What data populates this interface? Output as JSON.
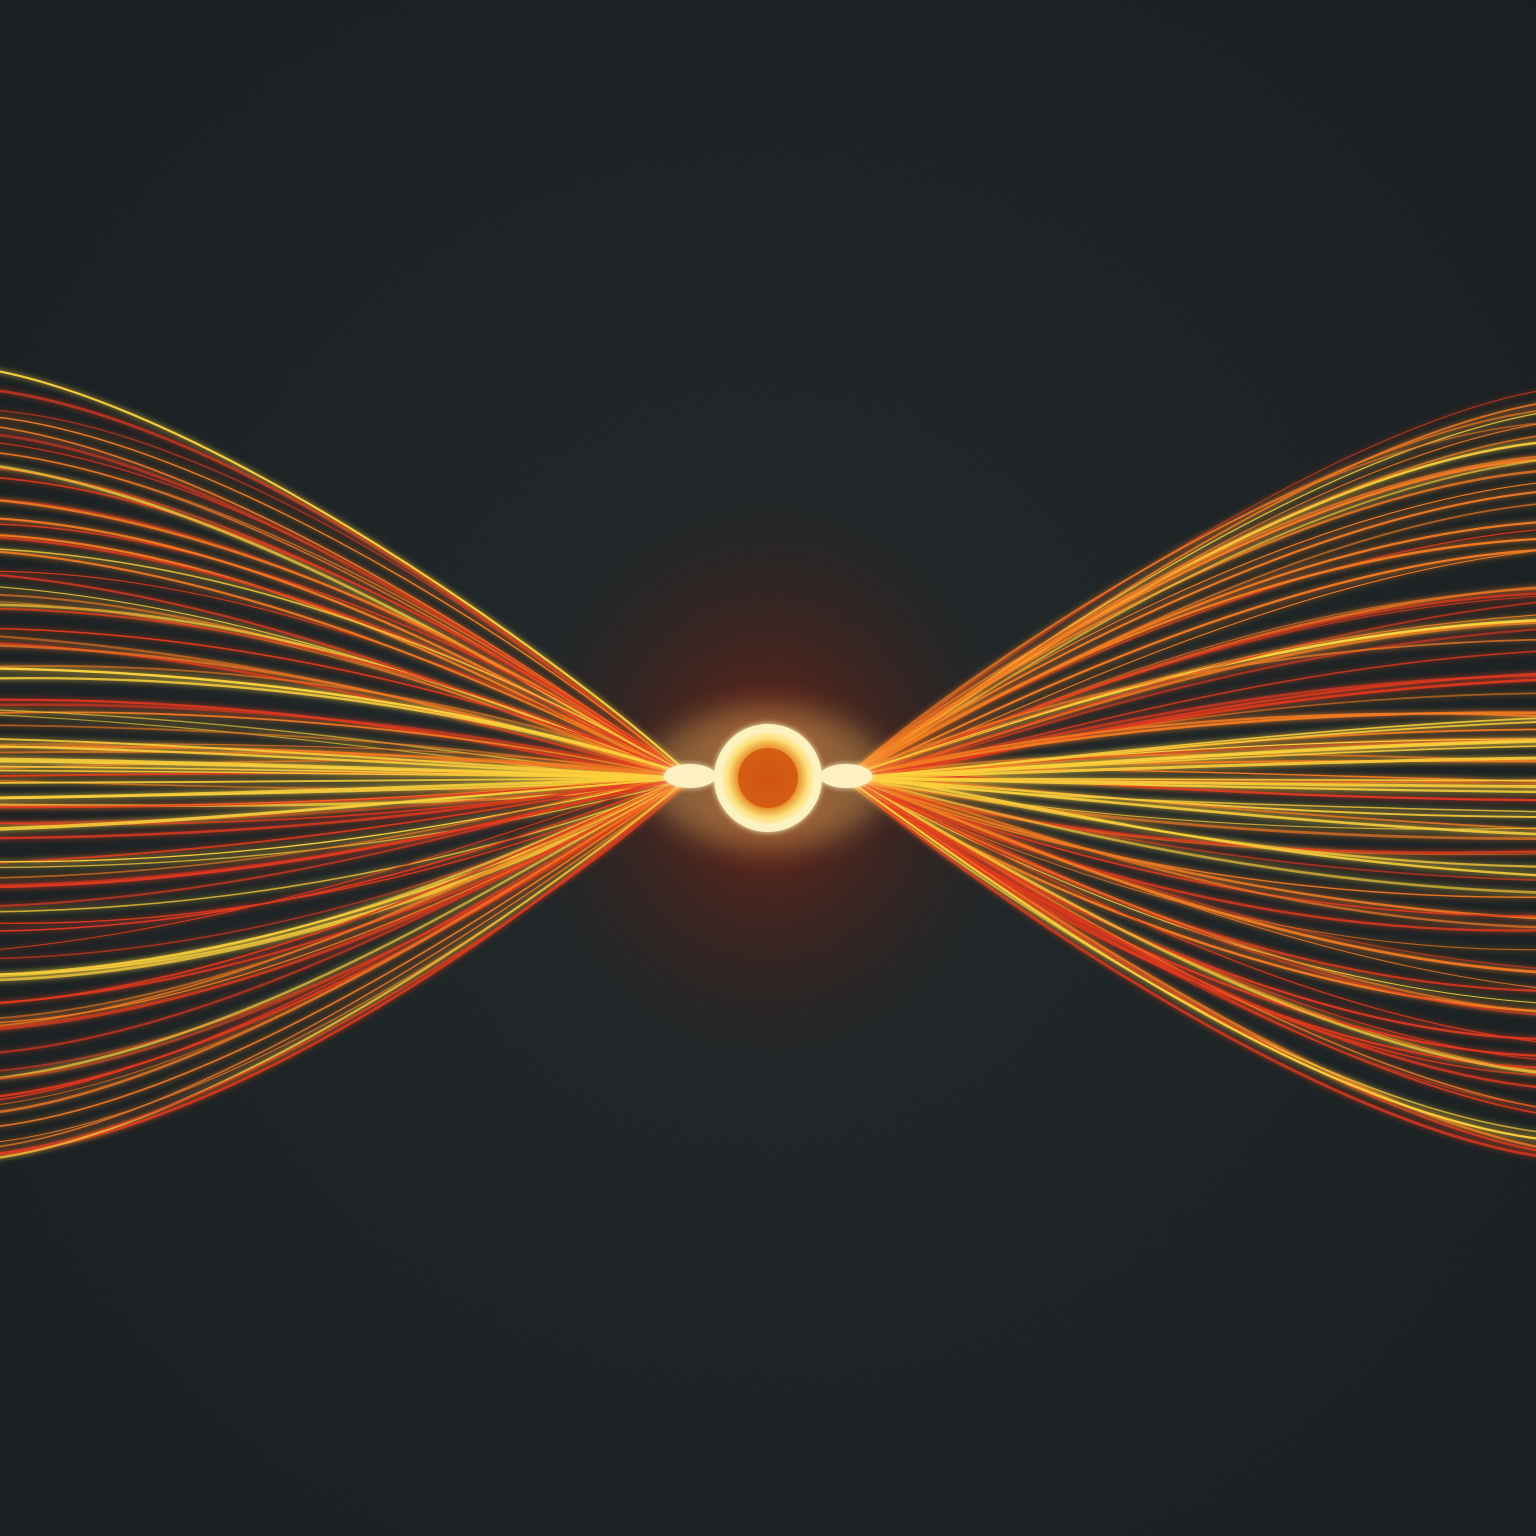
{
  "scene": {
    "subject": "glowing-field-lines",
    "palette": {
      "background": "#1d2426",
      "background_edge": "#151b1d",
      "line_red": "#e2361a",
      "line_orange": "#f47a1f",
      "line_yellow": "#ffd23a",
      "core_glow": "#fff6c8",
      "core_ring": "#ffe88a",
      "core_center": "#d9600f",
      "halo": "#7a1c0a"
    },
    "lobes": [
      "left",
      "right"
    ],
    "texture": "fine-grain"
  }
}
